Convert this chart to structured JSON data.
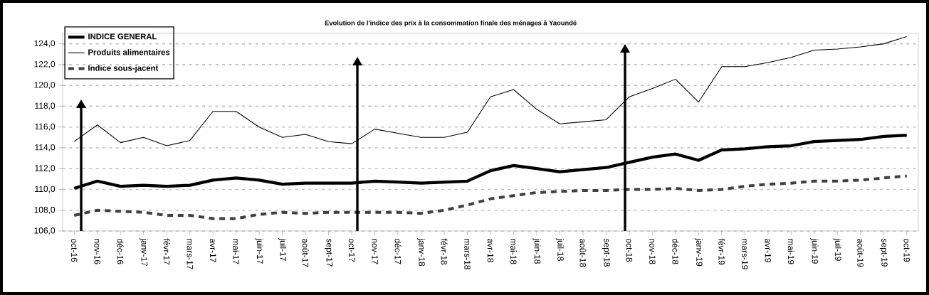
{
  "chart_data": {
    "type": "line",
    "title": "Evolution de l'indice des prix à la consommation finale des ménages à Yaoundé",
    "categories": [
      "oct-16",
      "nov-16",
      "déc-16",
      "janv-17",
      "févr-17",
      "mars-17",
      "avr-17",
      "mai-17",
      "juin-17",
      "juil-17",
      "août-17",
      "sept-17",
      "oct-17",
      "nov-17",
      "déc-17",
      "janv-18",
      "févr-18",
      "mars-18",
      "avr-18",
      "mai-18",
      "juin-18",
      "juil-18",
      "août-18",
      "sept-18",
      "oct-18",
      "nov-18",
      "déc-18",
      "janv-19",
      "févr-19",
      "mars-19",
      "avr-19",
      "mai-19",
      "juin-19",
      "juil-19",
      "août-19",
      "sept-19",
      "oct-19"
    ],
    "series": [
      {
        "name": "INDICE GENERAL",
        "color": "#000000",
        "line_style": "solid",
        "values": [
          110.1,
          110.8,
          110.3,
          110.4,
          110.3,
          110.4,
          110.9,
          111.1,
          110.9,
          110.5,
          110.6,
          110.6,
          110.6,
          110.8,
          110.7,
          110.6,
          110.7,
          110.8,
          111.8,
          112.3,
          112.0,
          111.7,
          111.9,
          112.1,
          112.6,
          113.1,
          113.4,
          112.8,
          113.8,
          113.9,
          114.1,
          114.2,
          114.6,
          114.7,
          114.8,
          115.1,
          115.2
        ]
      },
      {
        "name": "Produits alimentaires",
        "color": "#000000",
        "line_style": "solid",
        "values": [
          114.6,
          116.2,
          114.5,
          115.0,
          114.2,
          114.7,
          117.5,
          117.5,
          116.0,
          115.0,
          115.3,
          114.6,
          114.4,
          115.8,
          115.4,
          115.0,
          115.0,
          115.5,
          118.9,
          119.6,
          117.7,
          116.3,
          116.5,
          116.7,
          118.9,
          119.7,
          120.6,
          118.4,
          121.8,
          121.8,
          122.2,
          122.7,
          123.4,
          123.5,
          123.7,
          124.0,
          124.7
        ]
      },
      {
        "name": "Indice sous-jacent",
        "color": "#404040",
        "line_style": "dashed",
        "values": [
          107.5,
          108.0,
          107.9,
          107.8,
          107.5,
          107.5,
          107.2,
          107.2,
          107.6,
          107.8,
          107.7,
          107.8,
          107.8,
          107.8,
          107.8,
          107.7,
          108.0,
          108.5,
          109.1,
          109.4,
          109.7,
          109.8,
          109.9,
          109.9,
          110.0,
          110.0,
          110.1,
          109.9,
          110.0,
          110.3,
          110.5,
          110.6,
          110.8,
          110.8,
          110.9,
          111.1,
          111.3
        ]
      }
    ],
    "ylim": [
      106,
      125
    ],
    "yticks": [
      {
        "value": 106,
        "label": "106,0"
      },
      {
        "value": 108,
        "label": "108,0"
      },
      {
        "value": 110,
        "label": "110,0"
      },
      {
        "value": 112,
        "label": "112,0"
      },
      {
        "value": 114,
        "label": "114,0"
      },
      {
        "value": 116,
        "label": "116,0"
      },
      {
        "value": 118,
        "label": "118,0"
      },
      {
        "value": 120,
        "label": "120,0"
      },
      {
        "value": 122,
        "label": "122,0"
      },
      {
        "value": 124,
        "label": "124,0"
      }
    ],
    "grid": "y",
    "legend": "top left",
    "marker": "none"
  }
}
